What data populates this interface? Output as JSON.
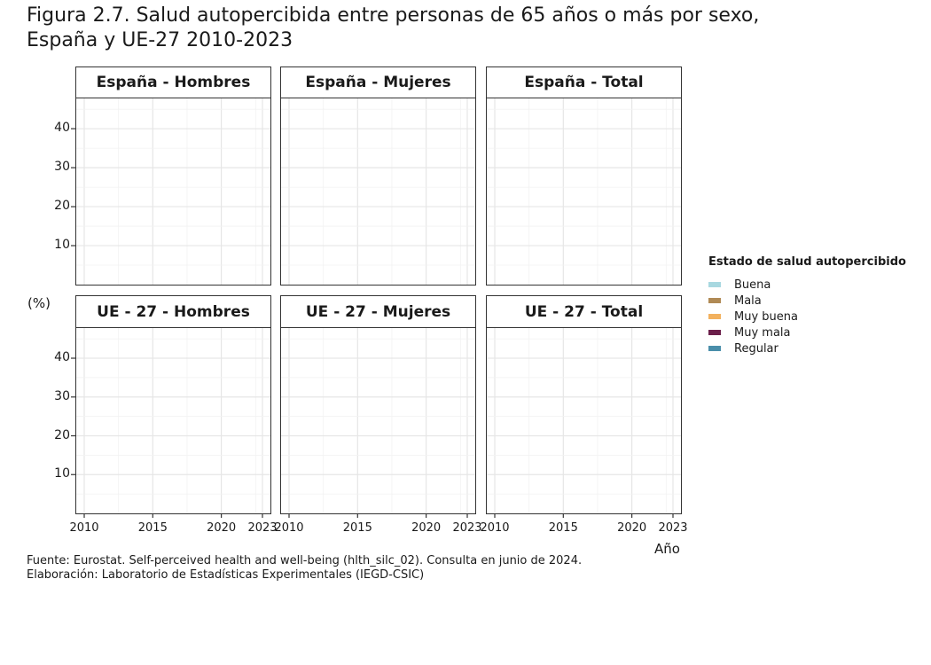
{
  "title_line1": "Figura 2.7. Salud autopercibida entre personas de 65 años o más por sexo,",
  "title_line2": "España y UE-27 2010-2023",
  "ylabel": "(%)",
  "xlabel": "Año",
  "caption_line1": "Fuente: Eurostat. Self-perceived health and well-being (hlth_silc_02). Consulta en junio de 2024.",
  "caption_line2": "Elaboración: Laboratorio de Estadísticas Experimentales (IEGD-CSIC)",
  "legend": {
    "title": "Estado de salud autopercibido",
    "items": [
      {
        "label": "Buena",
        "color": "#a8d8e0"
      },
      {
        "label": "Mala",
        "color": "#b08a55"
      },
      {
        "label": "Muy buena",
        "color": "#f2b15e"
      },
      {
        "label": "Muy mala",
        "color": "#6b1f4a"
      },
      {
        "label": "Regular",
        "color": "#4a8eaa"
      }
    ]
  },
  "chart_data": {
    "type": "area",
    "facets": [
      "España - Hombres",
      "España - Mujeres",
      "España - Total",
      "UE - 27 - Hombres",
      "UE - 27 - Mujeres",
      "UE - 27 - Total"
    ],
    "xlim": [
      2010,
      2023
    ],
    "ylim": [
      0,
      48
    ],
    "x_ticks": [
      2010,
      2015,
      2020,
      2023
    ],
    "y_ticks": [
      10,
      20,
      30,
      40
    ],
    "series": [],
    "grid": true
  }
}
